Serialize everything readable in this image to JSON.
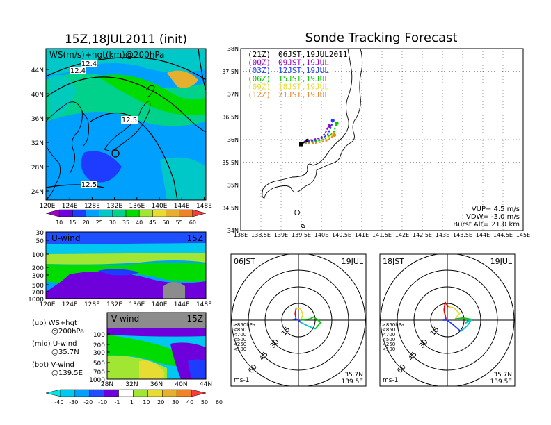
{
  "left": {
    "title": "15Z,18JUL2011 (init)",
    "upper_label": "WS(m/s)+hgt(km)@200hPa",
    "contour_labels": [
      "12.4",
      "12.4",
      "12.5",
      "12.5"
    ],
    "lat_ticks": [
      "44N",
      "40N",
      "36N",
      "32N",
      "28N",
      "24N"
    ],
    "lon_ticks": [
      "120E",
      "124E",
      "128E",
      "132E",
      "136E",
      "140E",
      "144E",
      "148E"
    ],
    "ws_colorbar": [
      "10",
      "15",
      "20",
      "25",
      "30",
      "35",
      "40",
      "45",
      "50",
      "55",
      "60"
    ],
    "ws_colors": [
      "#a000c8",
      "#6e00dc",
      "#1e3cff",
      "#00a0ff",
      "#00c8c8",
      "#00d28c",
      "#00dc00",
      "#a0e632",
      "#e6dc32",
      "#e6af2d",
      "#f08228",
      "#fa3c3c"
    ],
    "uwind": {
      "title": "U-wind",
      "time": "15Z",
      "p_ticks": [
        "30",
        "50",
        "100",
        "200",
        "300",
        "500",
        "700",
        "1000"
      ]
    },
    "vwind": {
      "title": "V-wind",
      "time": "15Z",
      "p_ticks": [
        "100",
        "200",
        "300",
        "500",
        "700",
        "1000"
      ],
      "lat_ticks": [
        "28N",
        "32N",
        "36N",
        "40N",
        "44N"
      ]
    },
    "notes": [
      "(up) WS+hgt",
      "@200hPa",
      "(mid) U-wind",
      "@35.7N",
      "(bot) V-wind",
      "@139.5E"
    ],
    "wind_colorbar": [
      "-40",
      "-30",
      "-20",
      "-10",
      "-1",
      "1",
      "10",
      "20",
      "30",
      "40",
      "50",
      "60"
    ],
    "wind_colors": [
      "#00e6e6",
      "#00c8f0",
      "#00a0ff",
      "#1e50ff",
      "#6e00dc",
      "#ffffff",
      "#a0e632",
      "#e6dc32",
      "#e6af2d",
      "#f08228",
      "#fa3c3c"
    ]
  },
  "tracking": {
    "title": "Sonde Tracking Forecast",
    "legend": [
      {
        "tag": "(21Z)",
        "time": "06JST,19JUL2011",
        "color": "#000000"
      },
      {
        "tag": "(00Z)",
        "time": "09JST,19JUL",
        "color": "#a000c8"
      },
      {
        "tag": "(03Z)",
        "time": "12JST,19JUL",
        "color": "#1e3cff"
      },
      {
        "tag": "(06Z)",
        "time": "15JST,19JUL",
        "color": "#00c800"
      },
      {
        "tag": "(09Z)",
        "time": "18JST,19JUL",
        "color": "#e6dc32"
      },
      {
        "tag": "(12Z)",
        "time": "21JST,19JUL",
        "color": "#f08228"
      }
    ],
    "lat_ticks": [
      "38N",
      "37.5N",
      "37N",
      "36.5N",
      "36N",
      "35.5N",
      "35N",
      "34.5N",
      "34N"
    ],
    "lon_ticks": [
      "138E",
      "138.5E",
      "139E",
      "139.5E",
      "140E",
      "140.5E",
      "141E",
      "141.5E",
      "142E",
      "142.5E",
      "143E",
      "143.5E",
      "144E",
      "144.5E",
      "145E"
    ],
    "params": [
      "VUP= 4.5 m/s",
      "VDW= -3.0 m/s",
      "Burst Alt= 21.0 km"
    ]
  },
  "hodographs": [
    {
      "time": "06JST",
      "date": "19JUL"
    },
    {
      "time": "18JST",
      "date": "19JUL"
    }
  ],
  "hodo_common": {
    "ring_labels": [
      "15",
      "30",
      "45",
      "60"
    ],
    "legend": [
      {
        "text": "≥850hPa",
        "color": "#fa0000"
      },
      {
        "text": "<850",
        "color": "#f08228"
      },
      {
        "text": "<700",
        "color": "#e6dc32"
      },
      {
        "text": "<500",
        "color": "#00c800"
      },
      {
        "text": "<250",
        "color": "#00c8c8"
      },
      {
        "text": "<100",
        "color": "#1e3cff"
      }
    ],
    "unit": "ms-1",
    "loc_lat": "35.7N",
    "loc_lon": "139.5E"
  },
  "chart_data": [
    {
      "type": "heatmap",
      "title": "15Z,18JUL2011 (init)",
      "subtitle": "WS(m/s)+hgt(km)@200hPa",
      "x": "longitude 120E-150E",
      "y": "latitude 22N-47N",
      "contour_values_km": [
        12.4,
        12.4,
        12.5,
        12.5
      ]
    },
    {
      "type": "line",
      "title": "Sonde Tracking Forecast",
      "xlim": [
        138,
        145
      ],
      "ylim": [
        34,
        38
      ],
      "series": [
        {
          "name": "(21Z) 06JST,19JUL2011",
          "x": [
            139.5,
            139.65
          ],
          "y": [
            35.9,
            35.98
          ]
        },
        {
          "name": "(00Z) 09JST,19JUL",
          "x": [
            139.5,
            139.6,
            139.8,
            140.0,
            140.1,
            140.15,
            140.2
          ],
          "y": [
            35.9,
            35.97,
            36.0,
            36.05,
            36.15,
            36.25,
            36.3
          ]
        },
        {
          "name": "(03Z) 12JST,19JUL",
          "x": [
            139.5,
            139.7,
            139.9,
            140.15,
            140.25,
            140.28
          ],
          "y": [
            35.9,
            35.97,
            35.98,
            36.1,
            36.3,
            36.42
          ]
        },
        {
          "name": "(06Z) 15JST,19JUL",
          "x": [
            139.5,
            139.8,
            140.05,
            140.3,
            140.38
          ],
          "y": [
            35.9,
            35.95,
            36.0,
            36.15,
            36.36
          ]
        },
        {
          "name": "(09Z) 18JST,19JUL",
          "x": [
            139.5,
            139.85,
            140.1,
            140.3
          ],
          "y": [
            35.9,
            35.92,
            36.0,
            36.12
          ]
        },
        {
          "name": "(12Z) 21JST,19JUL",
          "x": [
            139.5,
            139.9,
            140.15,
            140.32
          ],
          "y": [
            35.9,
            35.93,
            35.98,
            36.1
          ]
        }
      ],
      "params": {
        "VUP_ms": 4.5,
        "VDW_ms": -3.0,
        "burst_alt_km": 21.0
      }
    },
    {
      "type": "line",
      "title": "06JST 19JUL hodograph",
      "ring_values": [
        15,
        30,
        45,
        60
      ],
      "series": [
        {
          "name": "≥850hPa",
          "u": [
            -2,
            -3,
            -2
          ],
          "v": [
            0,
            6,
            11
          ]
        },
        {
          "name": "<700",
          "u": [
            -2,
            2,
            4,
            2
          ],
          "v": [
            11,
            10,
            5,
            0
          ]
        },
        {
          "name": "<500",
          "u": [
            2,
            10,
            14,
            16,
            20,
            15
          ],
          "v": [
            0,
            1,
            3,
            1,
            -2,
            -8
          ]
        },
        {
          "name": "<250",
          "u": [
            15,
            8,
            2
          ],
          "v": [
            -8,
            -5,
            -2
          ]
        },
        {
          "name": "<100",
          "u": [
            2,
            0,
            -3,
            -5
          ],
          "v": [
            -2,
            0,
            1,
            0
          ]
        }
      ]
    },
    {
      "type": "line",
      "title": "18JST 19JUL hodograph",
      "ring_values": [
        15,
        30,
        45,
        60
      ],
      "series": [
        {
          "name": "≥850hPa",
          "u": [
            -1,
            -3,
            -2,
            1
          ],
          "v": [
            0,
            9,
            16,
            12
          ]
        },
        {
          "name": "<700",
          "u": [
            1,
            6,
            11,
            7
          ],
          "v": [
            12,
            11,
            6,
            1
          ]
        },
        {
          "name": "<500",
          "u": [
            7,
            14,
            20,
            16
          ],
          "v": [
            1,
            2,
            1,
            -3
          ]
        },
        {
          "name": "<250",
          "u": [
            16,
            22,
            18,
            12
          ],
          "v": [
            -3,
            1,
            -5,
            -10
          ]
        },
        {
          "name": "<100",
          "u": [
            12,
            5,
            0,
            -4
          ],
          "v": [
            -10,
            -4,
            0,
            0
          ]
        }
      ]
    }
  ]
}
